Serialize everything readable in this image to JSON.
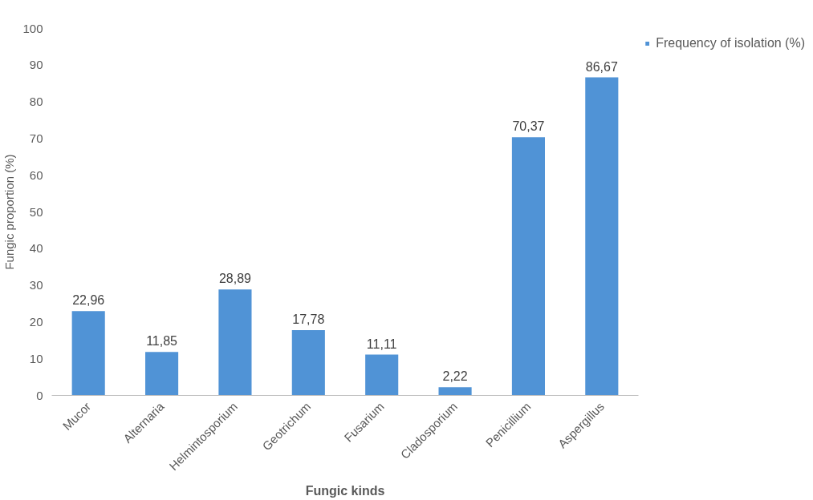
{
  "chart_data": {
    "type": "bar",
    "xlabel": "Fungic kinds",
    "ylabel": "Fungic proportion (%)",
    "categories": [
      "Mucor",
      "Alternaria",
      "Helmintosporium",
      "Geotrichum",
      "Fusarium",
      "Cladosporium",
      "Penicillium",
      "Aspergillus"
    ],
    "series": [
      {
        "name": "Frequency of isolation (%)",
        "color": "#5093d6",
        "values": [
          22.96,
          11.85,
          28.89,
          17.78,
          11.11,
          2.22,
          70.37,
          86.67
        ],
        "value_labels": [
          "22,96",
          "11,85",
          "28,89",
          "17,78",
          "11,11",
          "2,22",
          "70,37",
          "86,67"
        ]
      }
    ],
    "ylim": [
      0,
      100
    ],
    "yticks": [
      0,
      10,
      20,
      30,
      40,
      50,
      60,
      70,
      80,
      90,
      100
    ],
    "grid": false,
    "legend": "top right"
  }
}
